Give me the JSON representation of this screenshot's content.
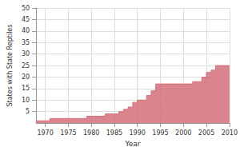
{
  "chart_data": {
    "type": "area",
    "x_label": "Year",
    "y_label": "States with State Reptiles",
    "x": [
      1968,
      1971,
      1979,
      1983,
      1986,
      1987,
      1988,
      1989,
      1990,
      1992,
      1993,
      1994,
      2002,
      2004,
      2005,
      2006,
      2007,
      2010
    ],
    "values": [
      1,
      2,
      3,
      4,
      5,
      6,
      7,
      9,
      10,
      12,
      14,
      17,
      18,
      20,
      22,
      23,
      25,
      25
    ],
    "color": "#d4707a",
    "line_style": "step",
    "xlim": [
      1968,
      2010
    ],
    "xticks": [
      1970,
      1975,
      1980,
      1985,
      1990,
      1995,
      2000,
      2005,
      2010
    ],
    "ylim": [
      0,
      50
    ],
    "yticks": [
      5,
      10,
      15,
      20,
      25,
      30,
      35,
      40,
      45,
      50
    ],
    "grid": true
  }
}
